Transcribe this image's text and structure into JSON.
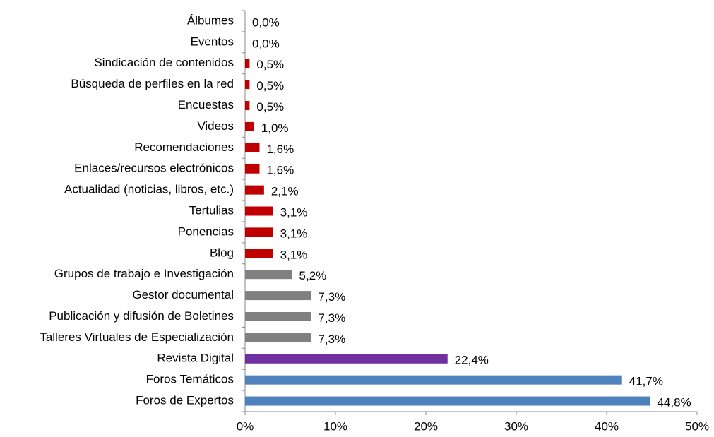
{
  "chart_data": {
    "type": "bar",
    "orientation": "horizontal",
    "categories": [
      "Álbumes",
      "Eventos",
      "Sindicación de contenidos",
      "Búsqueda de perfiles en la red",
      "Encuestas",
      "Videos",
      "Recomendaciones",
      "Enlaces/recursos electrónicos",
      "Actualidad (noticias, libros, etc.)",
      "Tertulias",
      "Ponencias",
      "Blog",
      "Grupos de trabajo e Investigación",
      "Gestor documental",
      "Publicación y difusión de Boletines",
      "Talleres Virtuales de Especialización",
      "Revista Digital",
      "Foros Temáticos",
      "Foros de Expertos"
    ],
    "values": [
      0.0,
      0.0,
      0.5,
      0.5,
      0.5,
      1.0,
      1.6,
      1.6,
      2.1,
      3.1,
      3.1,
      3.1,
      5.2,
      7.3,
      7.3,
      7.3,
      22.4,
      41.7,
      44.8
    ],
    "value_labels": [
      "0,0%",
      "0,0%",
      "0,5%",
      "0,5%",
      "0,5%",
      "1,0%",
      "1,6%",
      "1,6%",
      "2,1%",
      "3,1%",
      "3,1%",
      "3,1%",
      "5,2%",
      "7,3%",
      "7,3%",
      "7,3%",
      "22,4%",
      "41,7%",
      "44,8%"
    ],
    "colors": [
      "#c00000",
      "#c00000",
      "#c00000",
      "#c00000",
      "#c00000",
      "#c00000",
      "#c00000",
      "#c00000",
      "#c00000",
      "#c00000",
      "#c00000",
      "#c00000",
      "#808080",
      "#808080",
      "#808080",
      "#808080",
      "#7030a0",
      "#4f81bd",
      "#4f81bd"
    ],
    "xlim": [
      0,
      50
    ],
    "xticks": [
      {
        "value": 0,
        "label": "0%"
      },
      {
        "value": 10,
        "label": "10%"
      },
      {
        "value": 20,
        "label": "20%"
      },
      {
        "value": 30,
        "label": "30%"
      },
      {
        "value": 40,
        "label": "40%"
      },
      {
        "value": 50,
        "label": "50%"
      }
    ],
    "grid": false
  }
}
